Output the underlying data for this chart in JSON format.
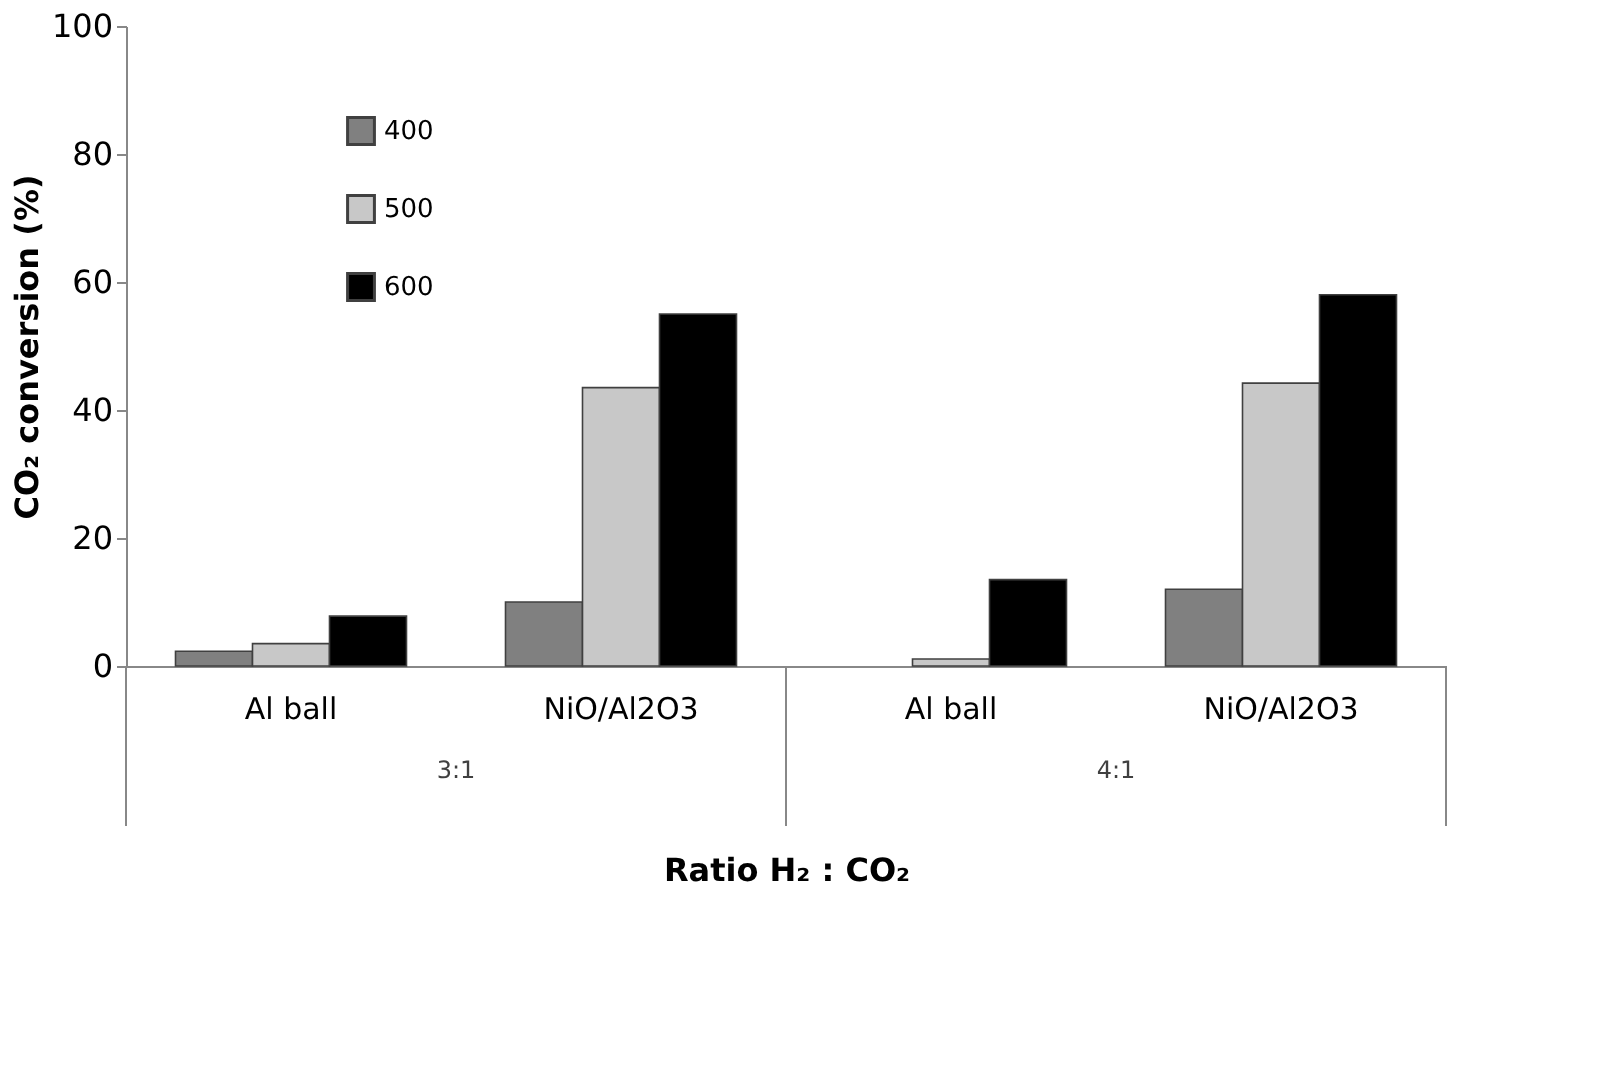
{
  "chart_data": {
    "type": "bar",
    "xlabel": "Ratio H₂ : CO₂",
    "ylabel": "CO₂ conversion (%)",
    "categories": [
      "Al ball",
      "NiO/Al2O3",
      "Al ball",
      "NiO/Al2O3"
    ],
    "series": [
      {
        "name": "400",
        "color": "#808080",
        "values": [
          2.3,
          10,
          null,
          12
        ]
      },
      {
        "name": "500",
        "color": "#c8c8c8",
        "values": [
          3.5,
          43.5,
          1.1,
          44.2
        ]
      },
      {
        "name": "600",
        "color": "#000000",
        "values": [
          7.8,
          55,
          13.5,
          58
        ]
      }
    ],
    "annotations": [
      "3:1",
      "4:1"
    ],
    "ylim": [
      0,
      100
    ],
    "yticks": [
      0,
      20,
      40,
      60,
      80,
      100
    ],
    "grid": false,
    "legend": "top left"
  }
}
